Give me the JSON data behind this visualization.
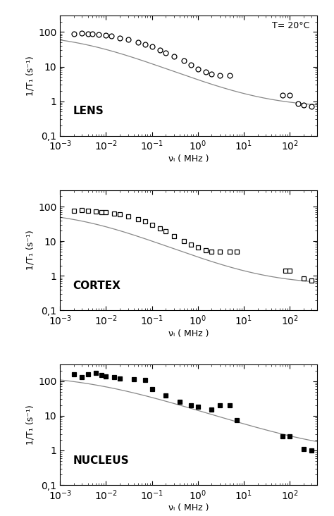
{
  "title_annotation": "T= 20°C",
  "panels": [
    {
      "label": "LENS",
      "marker": "o",
      "filled": false,
      "x": [
        0.002,
        0.003,
        0.004,
        0.005,
        0.007,
        0.01,
        0.013,
        0.02,
        0.03,
        0.05,
        0.07,
        0.1,
        0.15,
        0.2,
        0.3,
        0.5,
        0.7,
        1.0,
        1.5,
        2.0,
        3.0,
        5.0,
        70,
        100,
        150,
        200,
        300
      ],
      "y": [
        90,
        92,
        88,
        87,
        83,
        80,
        77,
        68,
        60,
        50,
        44,
        38,
        30,
        25,
        20,
        15,
        11,
        8.5,
        7.0,
        6.0,
        5.5,
        5.5,
        1.5,
        1.5,
        0.85,
        0.78,
        0.72
      ],
      "ylim": [
        0.1,
        300
      ],
      "xlim": [
        0.001,
        400
      ],
      "curve_params": [
        90,
        0.003,
        0.55,
        0.65
      ]
    },
    {
      "label": "CORTEX",
      "marker": "s",
      "filled": false,
      "x": [
        0.002,
        0.003,
        0.004,
        0.006,
        0.008,
        0.01,
        0.015,
        0.02,
        0.03,
        0.05,
        0.07,
        0.1,
        0.15,
        0.2,
        0.3,
        0.5,
        0.7,
        1.0,
        1.5,
        2.0,
        3.0,
        5.0,
        7.0,
        80,
        100,
        200,
        300
      ],
      "y": [
        75,
        78,
        75,
        72,
        70,
        68,
        63,
        60,
        52,
        43,
        37,
        30,
        23,
        19,
        14,
        10,
        8.0,
        6.5,
        5.5,
        5.0,
        5.0,
        5.0,
        5.0,
        1.4,
        1.4,
        0.85,
        0.72
      ],
      "ylim": [
        0.1,
        300
      ],
      "xlim": [
        0.001,
        400
      ],
      "curve_params": [
        75,
        0.003,
        0.55,
        0.55
      ]
    },
    {
      "label": "NUCLEUS",
      "marker": "s",
      "filled": true,
      "x": [
        0.002,
        0.003,
        0.004,
        0.006,
        0.008,
        0.01,
        0.015,
        0.02,
        0.04,
        0.07,
        0.1,
        0.2,
        0.4,
        0.7,
        1.0,
        2.0,
        3.0,
        5.0,
        7.0,
        70,
        100,
        200,
        300
      ],
      "y": [
        160,
        130,
        160,
        170,
        150,
        140,
        130,
        120,
        115,
        110,
        60,
        38,
        25,
        20,
        18,
        15,
        20,
        20,
        7.5,
        2.5,
        2.5,
        1.1,
        1.0
      ],
      "ylim": [
        0.1,
        300
      ],
      "xlim": [
        0.001,
        400
      ],
      "curve_params": [
        160,
        0.005,
        0.45,
        0.8
      ]
    }
  ],
  "ylabel": "1/T₁ (s⁻¹)",
  "xlabel": "νₗ ( MHz )",
  "line_color": "#888888",
  "ytick_labels": {
    "0.1": "0,1",
    "1.0": "1",
    "10.0": "10",
    "100.0": "100"
  },
  "yticks": [
    0.1,
    1,
    10,
    100
  ],
  "xticks": [
    0.001,
    0.01,
    0.1,
    1.0,
    10.0,
    100.0
  ]
}
